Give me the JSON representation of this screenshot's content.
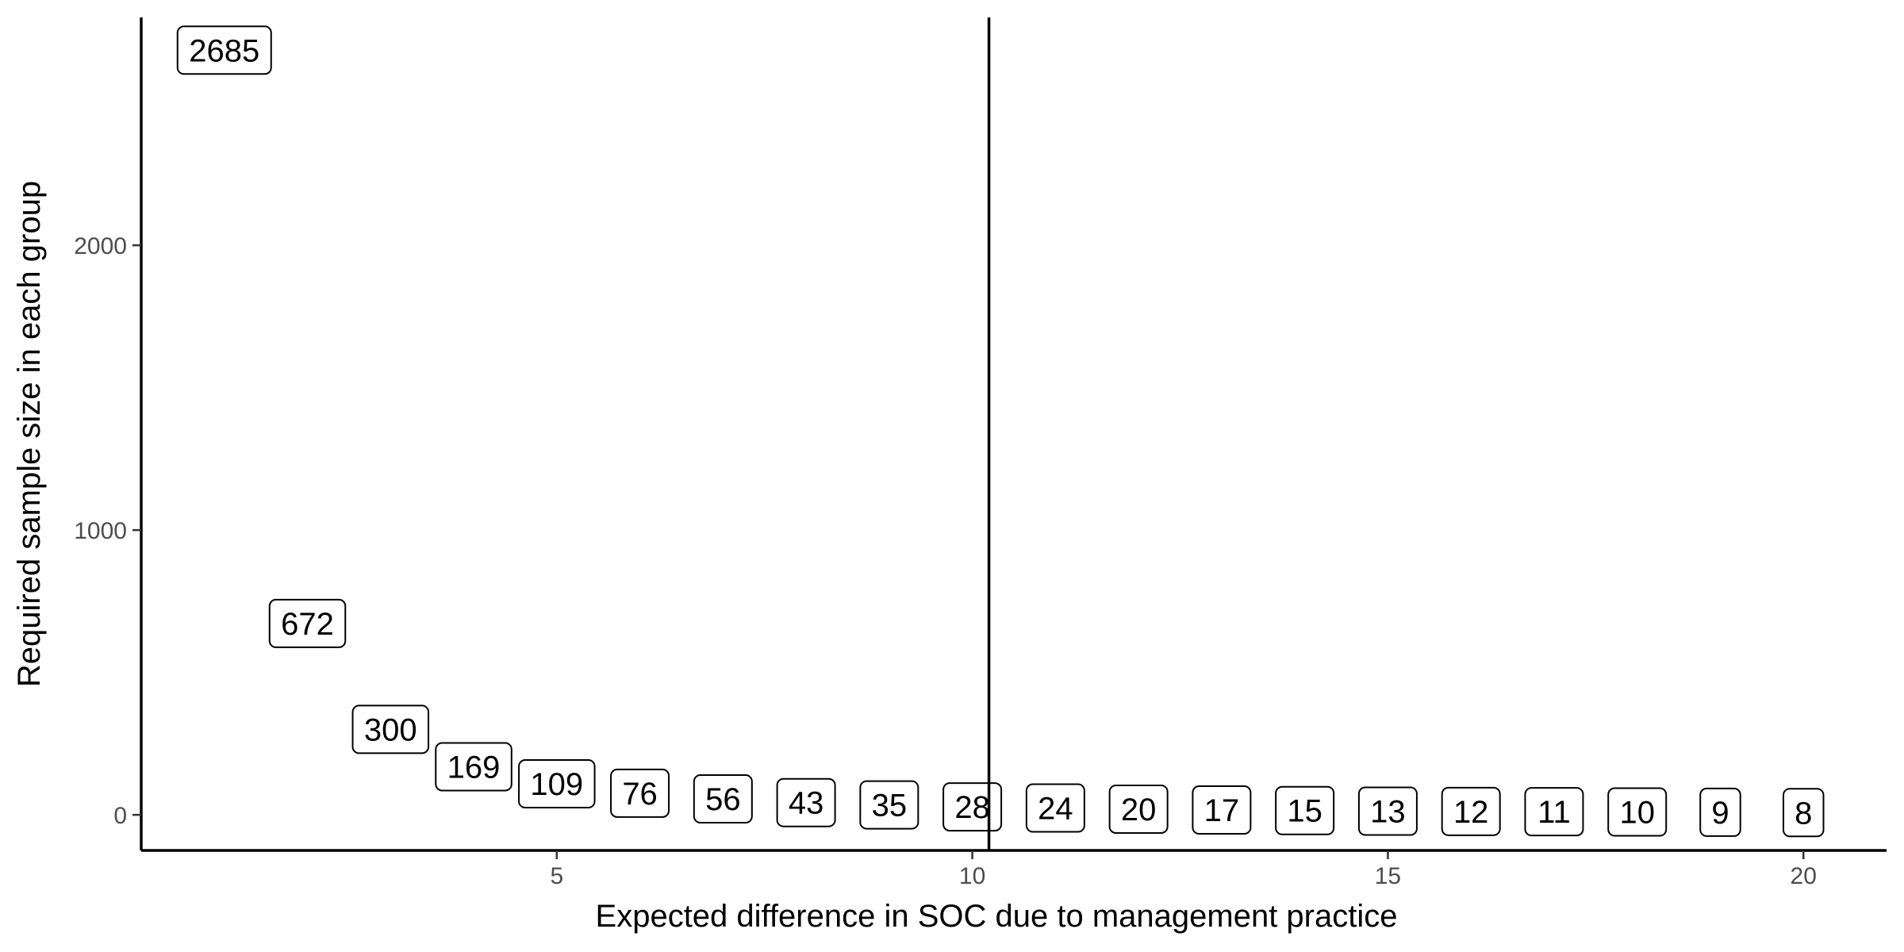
{
  "chart_data": {
    "type": "scatter",
    "xlabel": "Expected difference in SOC due to management practice",
    "ylabel": "Required sample size in each group",
    "xlim": [
      0.0,
      21.0
    ],
    "ylim": [
      -125,
      2800
    ],
    "x_ticks": [
      5,
      10,
      15,
      20
    ],
    "y_ticks": [
      0,
      1000,
      2000
    ],
    "grid": false,
    "legend": "none",
    "vline_x": 10.2,
    "points": [
      {
        "x": 1,
        "y": 2685,
        "label": "2685"
      },
      {
        "x": 2,
        "y": 672,
        "label": "672"
      },
      {
        "x": 3,
        "y": 300,
        "label": "300"
      },
      {
        "x": 4,
        "y": 169,
        "label": "169"
      },
      {
        "x": 5,
        "y": 109,
        "label": "109"
      },
      {
        "x": 6,
        "y": 76,
        "label": "76"
      },
      {
        "x": 7,
        "y": 56,
        "label": "56"
      },
      {
        "x": 8,
        "y": 43,
        "label": "43"
      },
      {
        "x": 9,
        "y": 35,
        "label": "35"
      },
      {
        "x": 10,
        "y": 28,
        "label": "28"
      },
      {
        "x": 11,
        "y": 24,
        "label": "24"
      },
      {
        "x": 12,
        "y": 20,
        "label": "20"
      },
      {
        "x": 13,
        "y": 17,
        "label": "17"
      },
      {
        "x": 14,
        "y": 15,
        "label": "15"
      },
      {
        "x": 15,
        "y": 13,
        "label": "13"
      },
      {
        "x": 16,
        "y": 12,
        "label": "12"
      },
      {
        "x": 17,
        "y": 11,
        "label": "11"
      },
      {
        "x": 18,
        "y": 10,
        "label": "10"
      },
      {
        "x": 19,
        "y": 9,
        "label": "9"
      },
      {
        "x": 20,
        "y": 8,
        "label": "8"
      }
    ]
  }
}
